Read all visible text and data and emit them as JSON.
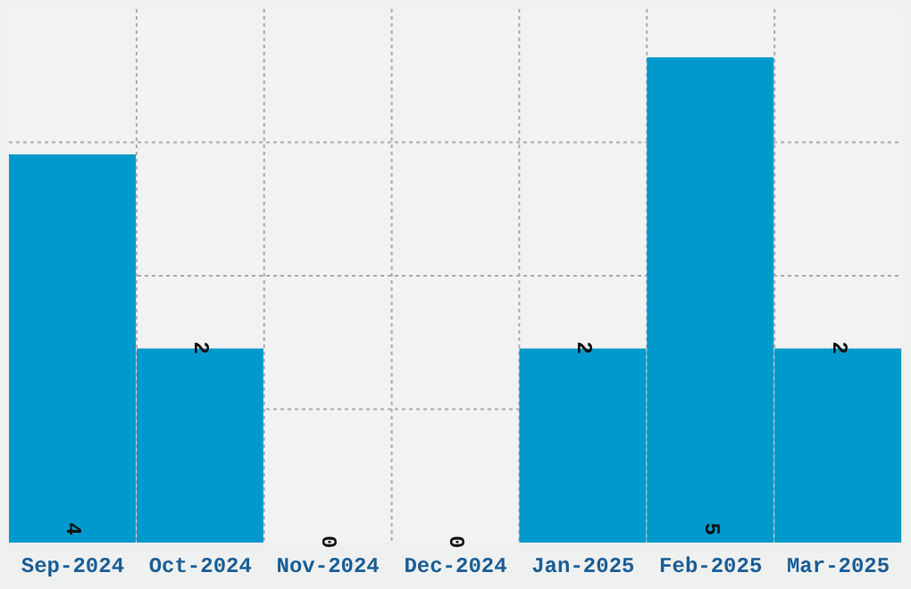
{
  "chart_data": {
    "type": "bar",
    "categories": [
      "Sep-2024",
      "Oct-2024",
      "Nov-2024",
      "Dec-2024",
      "Jan-2025",
      "Feb-2025",
      "Mar-2025"
    ],
    "values": [
      4,
      2,
      0,
      0,
      2,
      5,
      2
    ],
    "color": "#0099cc",
    "data_labels": true,
    "grid": true,
    "tick_labels": "x",
    "ylim": [
      0,
      5.5
    ]
  }
}
